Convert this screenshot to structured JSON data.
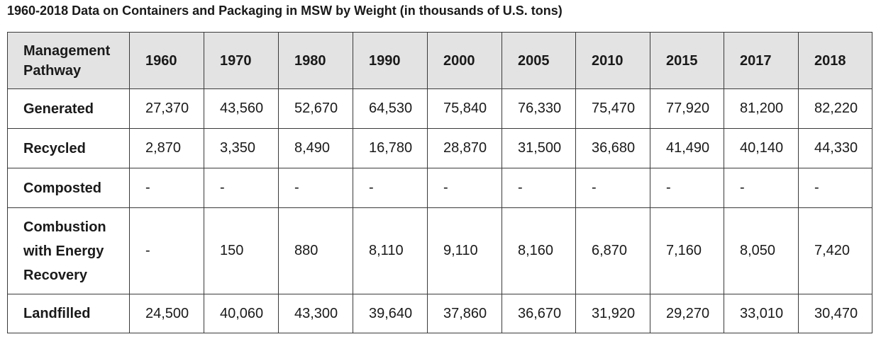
{
  "title": "1960-2018 Data on Containers and Packaging in MSW by Weight (in thousands of U.S. tons)",
  "table": {
    "corner_header": "Management Pathway",
    "years": [
      "1960",
      "1970",
      "1980",
      "1990",
      "2000",
      "2005",
      "2010",
      "2015",
      "2017",
      "2018"
    ],
    "rows": [
      {
        "label": "Generated",
        "values": [
          "27,370",
          "43,560",
          "52,670",
          "64,530",
          "75,840",
          "76,330",
          "75,470",
          "77,920",
          "81,200",
          "82,220"
        ]
      },
      {
        "label": "Recycled",
        "values": [
          "2,870",
          "3,350",
          "8,490",
          "16,780",
          "28,870",
          "31,500",
          "36,680",
          "41,490",
          "40,140",
          "44,330"
        ]
      },
      {
        "label": "Composted",
        "values": [
          "-",
          "-",
          "-",
          "-",
          "-",
          "-",
          "-",
          "-",
          "-",
          "-"
        ]
      },
      {
        "label": "Combustion with Energy Recovery",
        "values": [
          "-",
          "150",
          "880",
          "8,110",
          "9,110",
          "8,160",
          "6,870",
          "7,160",
          "8,050",
          "7,420"
        ]
      },
      {
        "label": "Landfilled",
        "values": [
          "24,500",
          "40,060",
          "43,300",
          "39,640",
          "37,860",
          "36,670",
          "31,920",
          "29,270",
          "33,010",
          "30,470"
        ]
      }
    ]
  }
}
